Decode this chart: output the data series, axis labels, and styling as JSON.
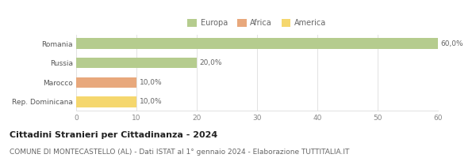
{
  "categories": [
    "Romania",
    "Russia",
    "Marocco",
    "Rep. Dominicana"
  ],
  "values": [
    60.0,
    20.0,
    10.0,
    10.0
  ],
  "bar_colors": [
    "#b5cc8e",
    "#b5cc8e",
    "#e8a87c",
    "#f5d76e"
  ],
  "continents": [
    "Europa",
    "Africa",
    "America"
  ],
  "legend_colors": [
    "#b5cc8e",
    "#e8a87c",
    "#f5d76e"
  ],
  "labels": [
    "60,0%",
    "20,0%",
    "10,0%",
    "10,0%"
  ],
  "xlim": [
    0,
    60
  ],
  "xticks": [
    0,
    10,
    20,
    30,
    40,
    50,
    60
  ],
  "title": "Cittadini Stranieri per Cittadinanza - 2024",
  "subtitle": "COMUNE DI MONTECASTELLO (AL) - Dati ISTAT al 1° gennaio 2024 - Elaborazione TUTTITALIA.IT",
  "title_fontsize": 8,
  "subtitle_fontsize": 6.5,
  "label_fontsize": 6.5,
  "tick_fontsize": 6.5,
  "legend_fontsize": 7,
  "bg_color": "#ffffff",
  "bar_height": 0.55,
  "grid_color": "#dddddd"
}
